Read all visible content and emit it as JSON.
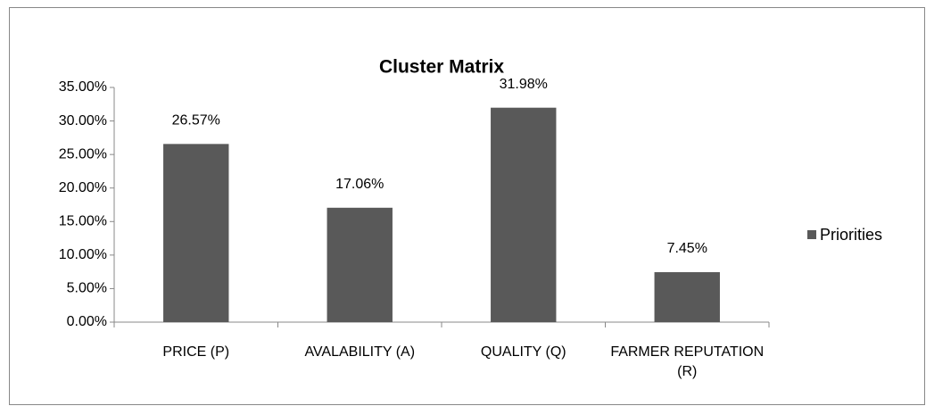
{
  "chart_data": {
    "type": "bar",
    "title": "Cluster Matrix",
    "categories": [
      "PRICE (P)",
      "AVALABILITY (A)",
      "QUALITY (Q)",
      "FARMER REPUTATION (R)"
    ],
    "series": [
      {
        "name": "Priorities",
        "color": "#595959",
        "values": [
          26.57,
          17.06,
          31.98,
          7.45
        ],
        "value_labels": [
          "26.57%",
          "17.06%",
          "31.98%",
          "7.45%"
        ]
      }
    ],
    "ylim": [
      0,
      35
    ],
    "yticks": [
      {
        "value": 0,
        "label": "0.00%"
      },
      {
        "value": 5,
        "label": "5.00%"
      },
      {
        "value": 10,
        "label": "10.00%"
      },
      {
        "value": 15,
        "label": "15.00%"
      },
      {
        "value": 20,
        "label": "20.00%"
      },
      {
        "value": 25,
        "label": "25.00%"
      },
      {
        "value": 30,
        "label": "30.00%"
      },
      {
        "value": 35,
        "label": "35.00%"
      }
    ],
    "legend": "right"
  }
}
